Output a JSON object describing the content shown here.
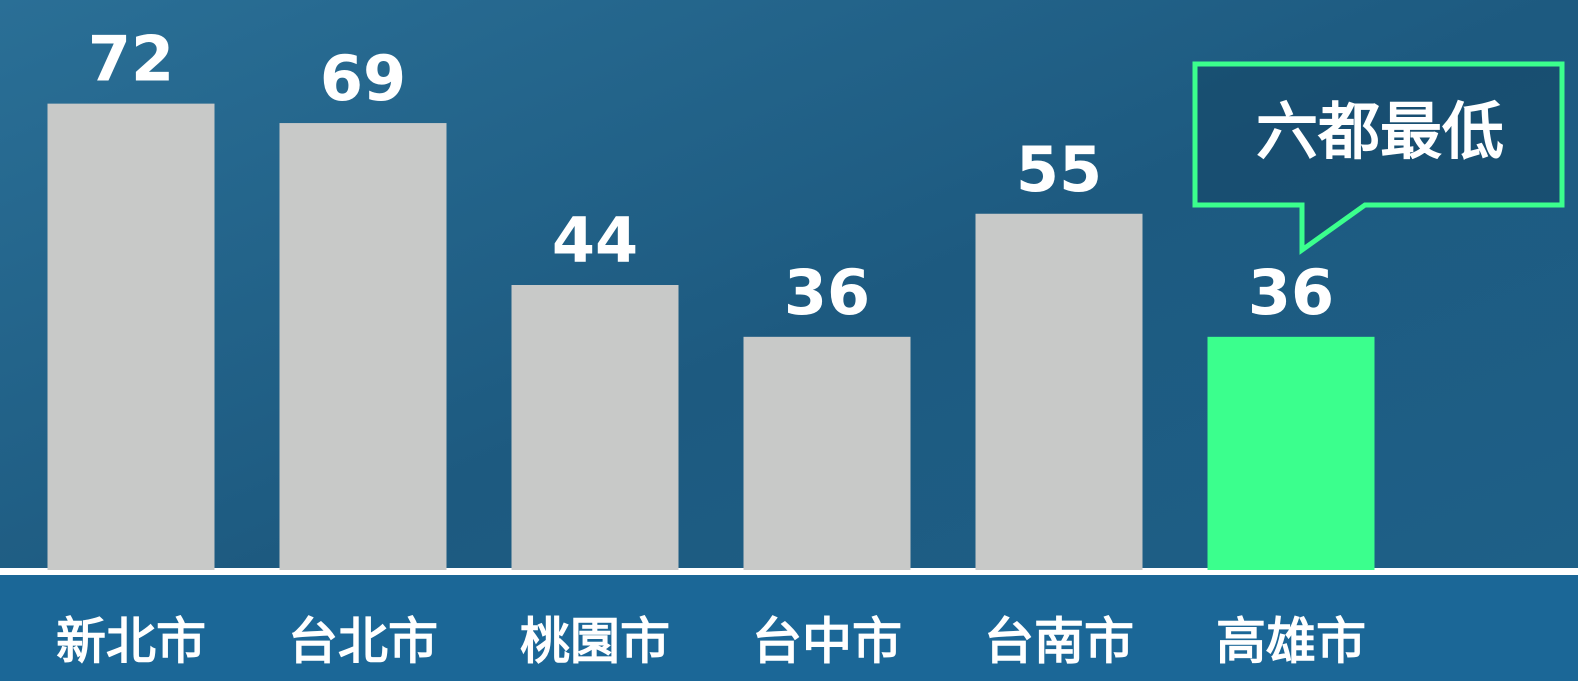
{
  "chart_data": {
    "type": "bar",
    "categories": [
      "新北市",
      "台北市",
      "桃園市",
      "台中市",
      "台南市",
      "高雄市"
    ],
    "values": [
      72,
      69,
      44,
      36,
      55,
      36
    ],
    "colors": [
      "#c8c9c8",
      "#c8c9c8",
      "#c8c9c8",
      "#c8c9c8",
      "#c8c9c8",
      "#3bff8d"
    ],
    "ylim": [
      0,
      88
    ],
    "annotation": "六都最低"
  }
}
